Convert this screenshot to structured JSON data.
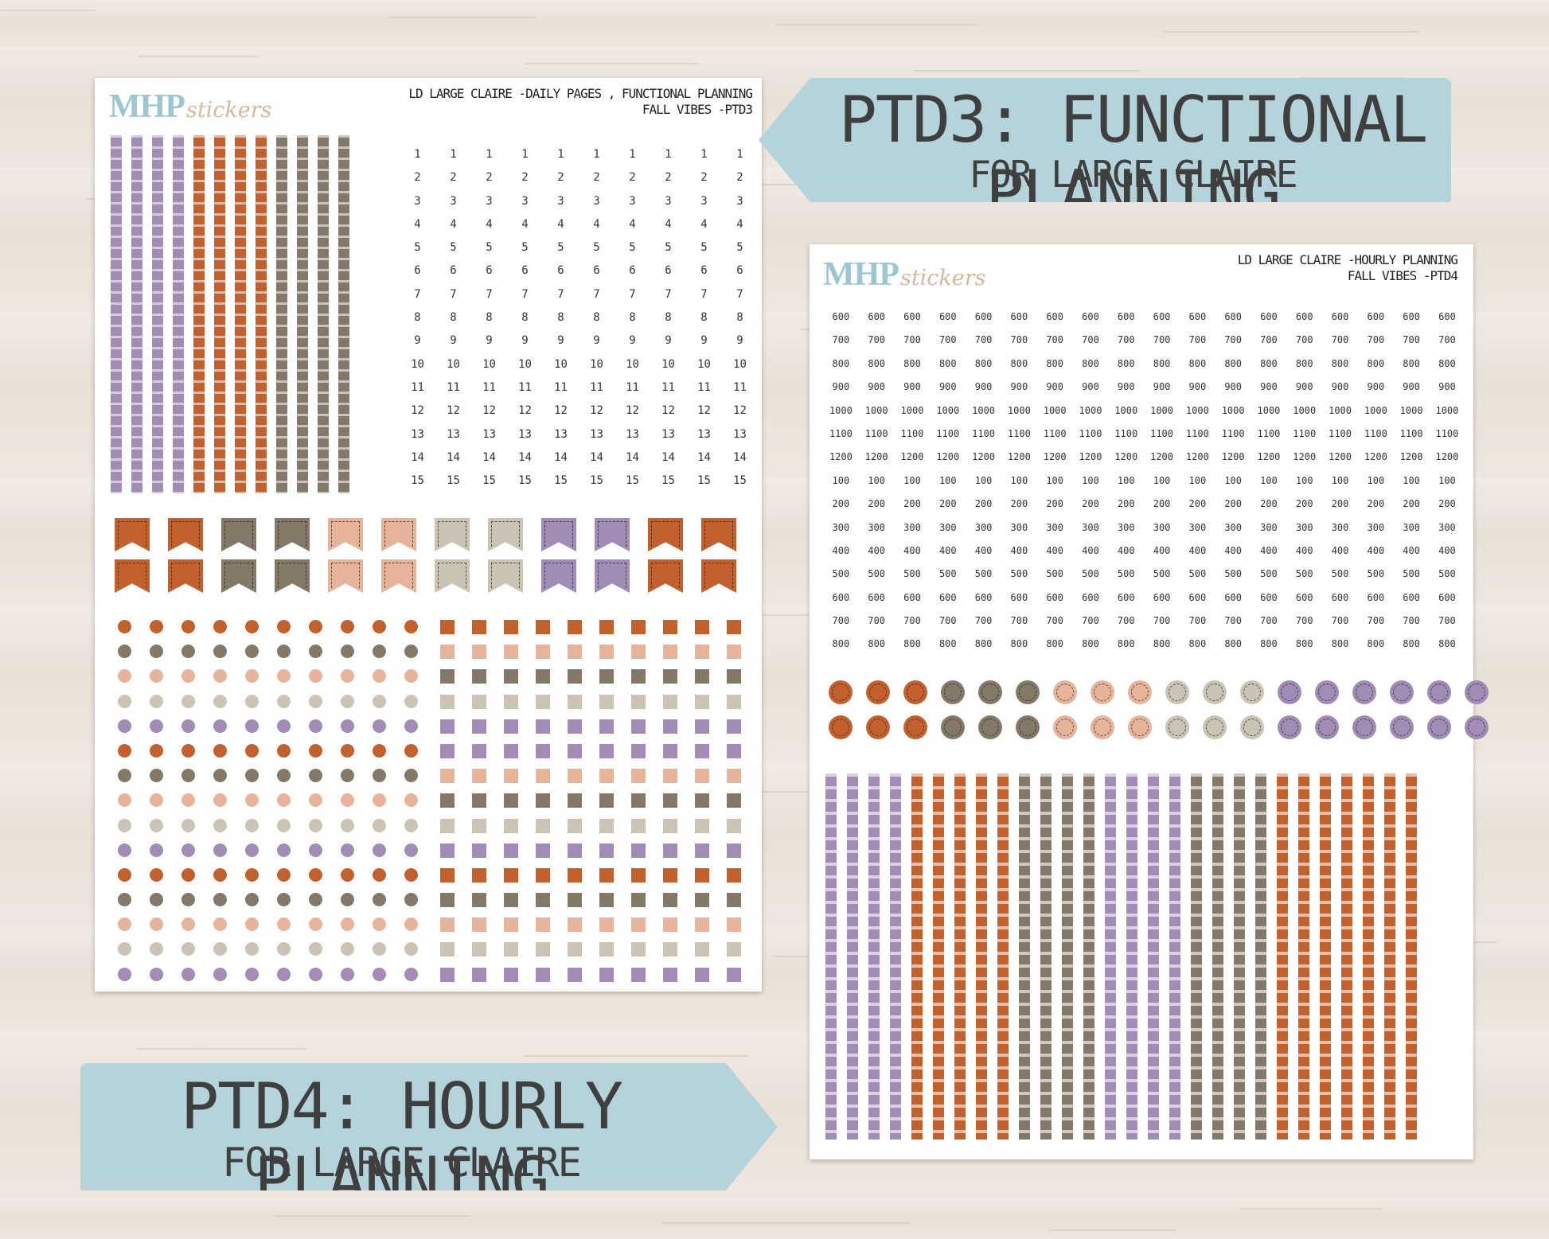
{
  "sheet_ptd3": {
    "logo_mhp": "MHP",
    "logo_stickers": "stickers",
    "title_line1": "LD LARGE CLAIRE -DAILY PAGES , FUNCTIONAL PLANNING",
    "title_line2": "FALL VIBES -PTD3",
    "numbers": [
      "1",
      "2",
      "3",
      "4",
      "5",
      "6",
      "7",
      "8",
      "9",
      "10",
      "11",
      "12",
      "13",
      "14",
      "15"
    ]
  },
  "sheet_ptd4": {
    "logo_mhp": "MHP",
    "logo_stickers": "stickers",
    "title_line1": "LD LARGE CLAIRE -HOURLY PLANNING",
    "title_line2": "FALL VIBES -PTD4",
    "hours": [
      "600",
      "700",
      "800",
      "900",
      "1000",
      "1100",
      "1200",
      "100",
      "200",
      "300",
      "400",
      "500",
      "600",
      "700",
      "800"
    ]
  },
  "banner_ptd3": {
    "main": "PTD3: FUNCTIONAL PLANNING",
    "sub": "FOR LARGE CLAIRE"
  },
  "banner_ptd4": {
    "main": "PTD4: HOURLY PLANNING",
    "sub": "FOR LARGE CLAIRE"
  },
  "colors": {
    "orange": "#c2602e",
    "taupe": "#847868",
    "peach": "#e6b49a",
    "beige": "#cbc3b4",
    "lavender": "#a08cb4",
    "banner": "#b4d3db",
    "logo_blue": "#9bc6d2",
    "logo_tan": "#d6b89c"
  }
}
